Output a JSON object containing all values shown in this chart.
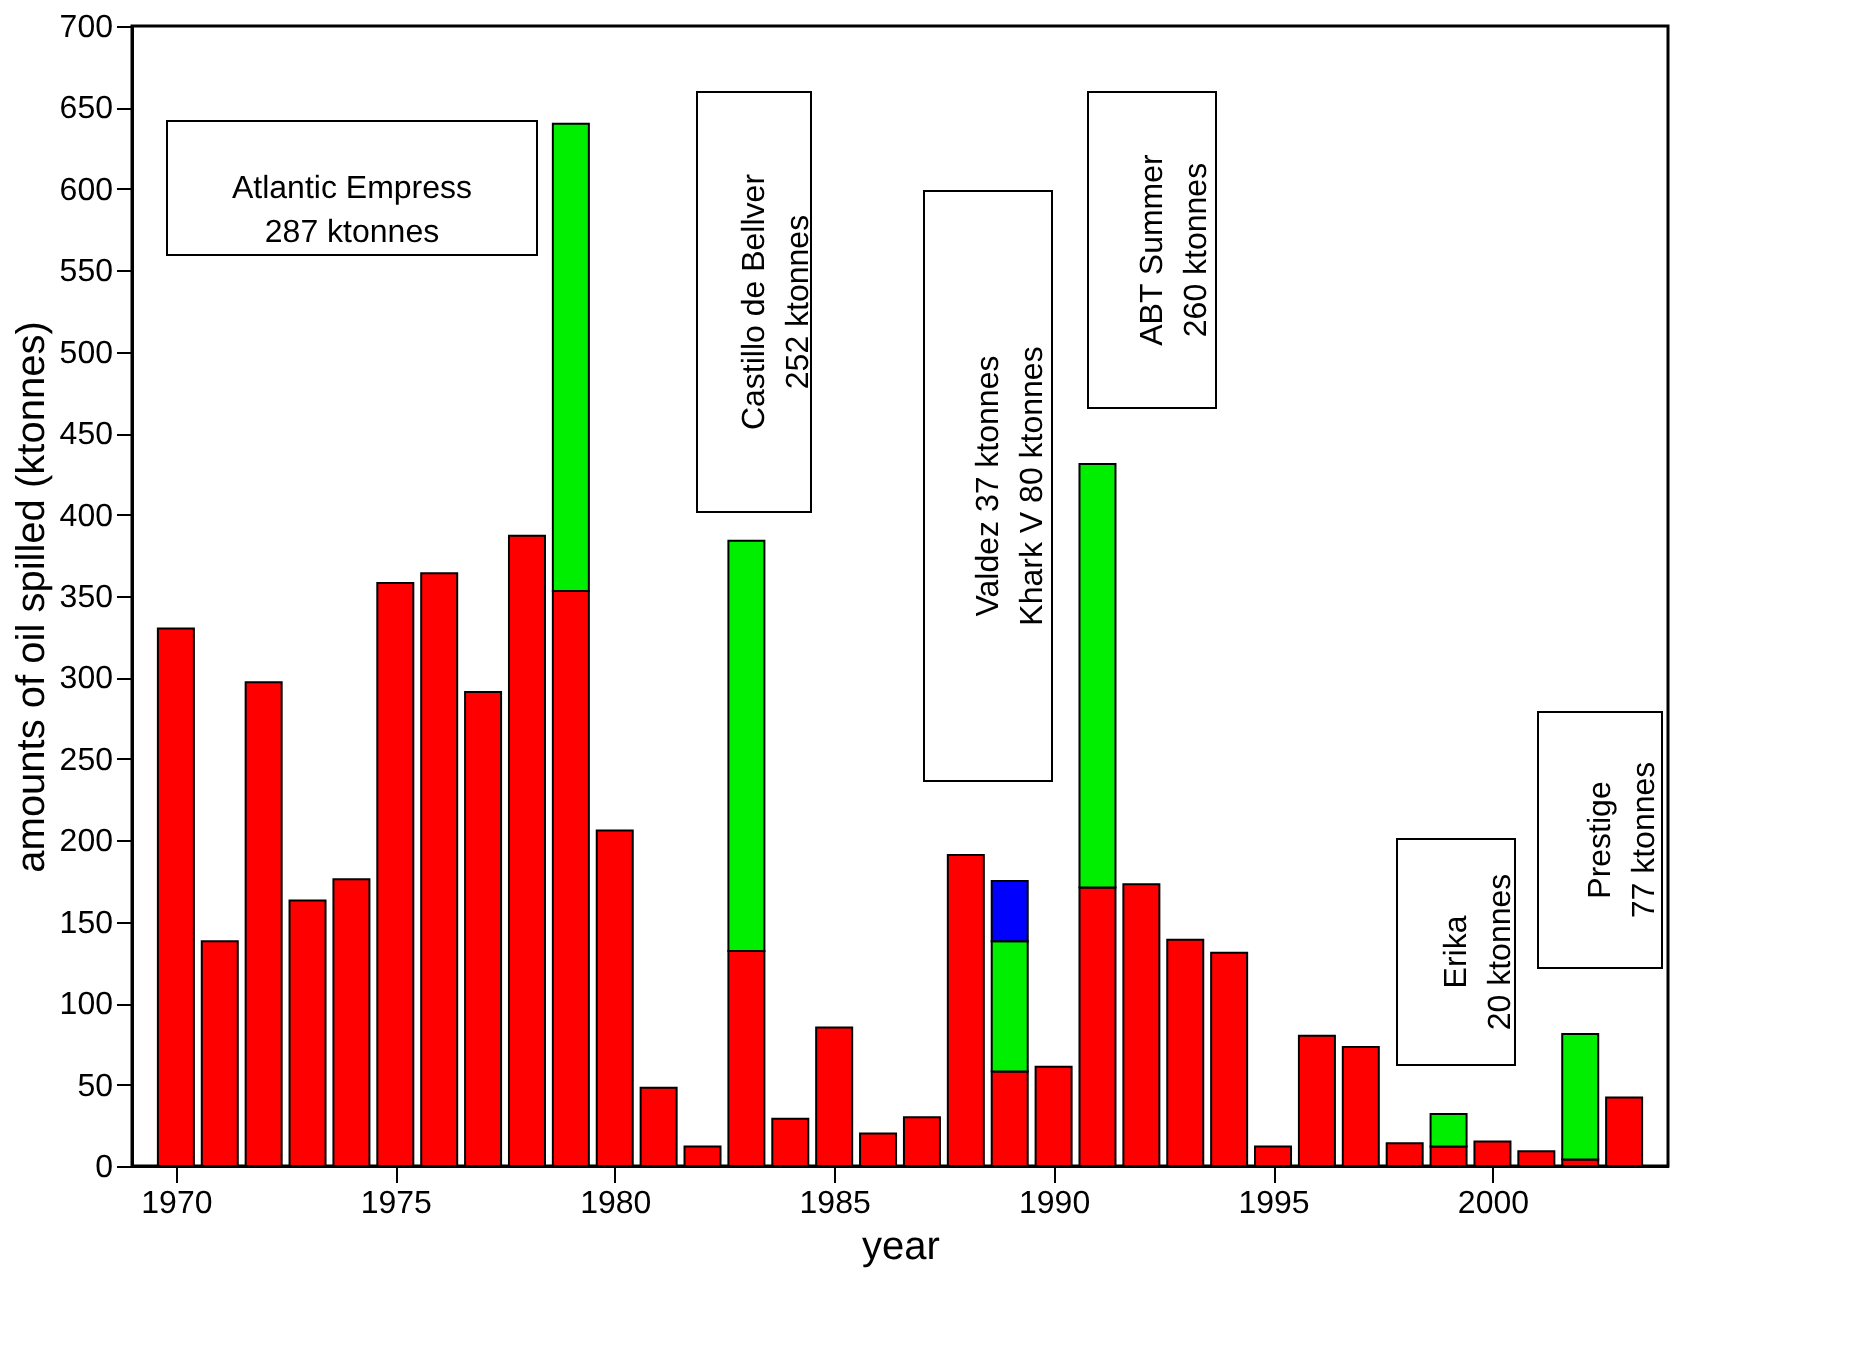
{
  "chart_data": {
    "type": "bar",
    "stacked": true,
    "xlabel": "year",
    "ylabel": "amounts of oil spilled (ktonnes)",
    "x": [
      1970,
      1971,
      1972,
      1973,
      1974,
      1975,
      1976,
      1977,
      1978,
      1979,
      1980,
      1981,
      1982,
      1983,
      1984,
      1985,
      1986,
      1987,
      1988,
      1989,
      1990,
      1991,
      1992,
      1993,
      1994,
      1995,
      1996,
      1997,
      1998,
      1999,
      2000,
      2001,
      2002,
      2003
    ],
    "series": [
      {
        "color": "#ff0000",
        "values": [
          330,
          138,
          297,
          163,
          176,
          358,
          364,
          291,
          387,
          353,
          206,
          48,
          12,
          132,
          29,
          85,
          20,
          30,
          191,
          58,
          61,
          171,
          173,
          139,
          131,
          12,
          80,
          73,
          14,
          12,
          15,
          9,
          4,
          42
        ]
      },
      {
        "color": "#00ee00",
        "values": [
          null,
          null,
          null,
          null,
          null,
          null,
          null,
          null,
          null,
          287,
          null,
          null,
          null,
          252,
          null,
          null,
          null,
          null,
          null,
          80,
          null,
          260,
          null,
          null,
          null,
          null,
          null,
          null,
          null,
          20,
          null,
          null,
          77,
          null
        ]
      },
      {
        "color": "#0000ff",
        "values": [
          null,
          null,
          null,
          null,
          null,
          null,
          null,
          null,
          null,
          null,
          null,
          null,
          null,
          null,
          null,
          null,
          null,
          null,
          null,
          37,
          null,
          null,
          null,
          null,
          null,
          null,
          null,
          null,
          null,
          null,
          null,
          null,
          null,
          null
        ]
      }
    ],
    "xlim": [
      1969,
      2004
    ],
    "xticks": [
      1970,
      1975,
      1980,
      1985,
      1990,
      1995,
      2000
    ],
    "ylim": [
      0,
      700
    ],
    "yticks": [
      0,
      50,
      100,
      150,
      200,
      250,
      300,
      350,
      400,
      450,
      500,
      550,
      600,
      650,
      700
    ],
    "grid": false,
    "legend": false,
    "annotations": [
      "Atlantic Empress\n287 ktonnes",
      "Castillo de Bellver\n252 ktonnes",
      "Valdez 37 ktonnes\nKhark V 80 ktonnes",
      "ABT Summer\n260 ktonnes",
      "Erika\n20 ktonnes",
      "Prestige\n77 ktonnes"
    ]
  }
}
